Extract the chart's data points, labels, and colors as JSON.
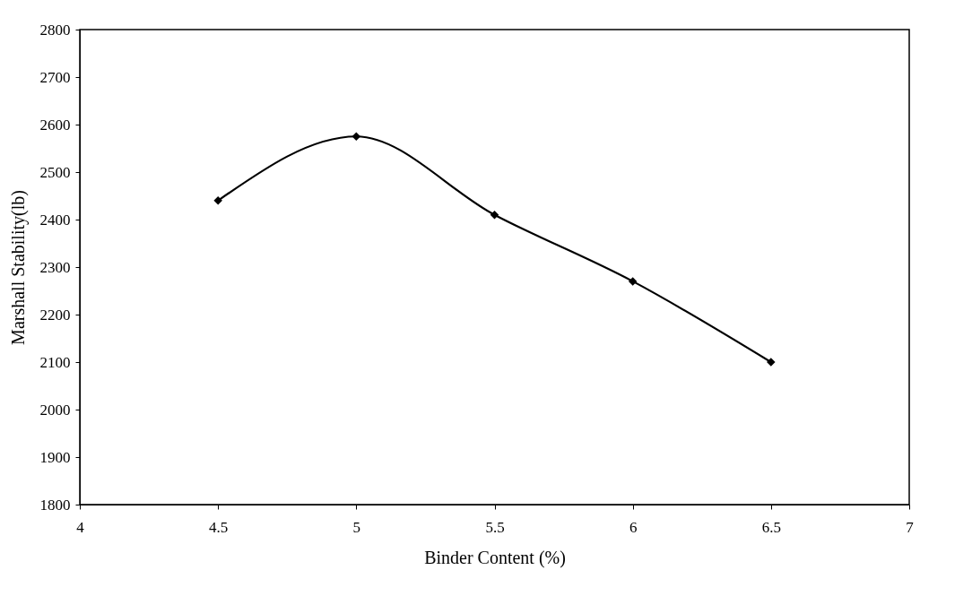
{
  "chart_data": {
    "type": "line",
    "xlabel": "Binder Content (%)",
    "ylabel": "Marshall Stability(lb)",
    "x": [
      4.5,
      5,
      5.5,
      6,
      6.5
    ],
    "series": [
      {
        "color": "#000000",
        "values": [
          2440,
          2575,
          2410,
          2270,
          2100
        ]
      }
    ],
    "xlim": [
      4,
      7
    ],
    "xticks": [
      4,
      4.5,
      5,
      5.5,
      6,
      6.5,
      7
    ],
    "ylim": [
      1800,
      2800
    ],
    "yticks": [
      1800,
      1900,
      2000,
      2100,
      2200,
      2300,
      2400,
      2500,
      2600,
      2700,
      2800
    ],
    "marker": "diamond",
    "line_style": "solid",
    "grid": false
  }
}
